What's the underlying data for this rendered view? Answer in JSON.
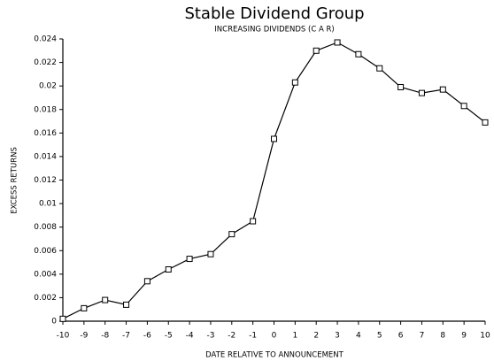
{
  "chart_data": {
    "type": "line",
    "title": "Stable Dividend Group",
    "subtitle": "INCREASING DIVIDENDS (C A R)",
    "xlabel": "DATE RELATIVE TO ANNOUNCEMENT",
    "ylabel": "EXCESS RETURNS",
    "x": [
      -10,
      -9,
      -8,
      -7,
      -6,
      -5,
      -4,
      -3,
      -2,
      -1,
      0,
      1,
      2,
      3,
      4,
      5,
      6,
      7,
      8,
      9,
      10
    ],
    "series": [
      {
        "name": "CAR",
        "color": "#000000",
        "marker": "square",
        "values": [
          0.0002,
          0.0011,
          0.0018,
          0.0014,
          0.0034,
          0.0044,
          0.0053,
          0.0057,
          0.0074,
          0.0085,
          0.0155,
          0.0203,
          0.023,
          0.0237,
          0.0227,
          0.0215,
          0.0199,
          0.0194,
          0.0197,
          0.0183,
          0.0169
        ]
      }
    ],
    "xlim": [
      -10,
      10
    ],
    "xticks": [
      -10,
      -9,
      -8,
      -7,
      -6,
      -5,
      -4,
      -3,
      -2,
      -1,
      0,
      1,
      2,
      3,
      4,
      5,
      6,
      7,
      8,
      9,
      10
    ],
    "ylim": [
      0,
      0.024
    ],
    "yticks": [
      0,
      0.002,
      0.004,
      0.006,
      0.008,
      0.01,
      0.012,
      0.014,
      0.016,
      0.018,
      0.02,
      0.022,
      0.024
    ],
    "grid": false,
    "legend": false
  }
}
